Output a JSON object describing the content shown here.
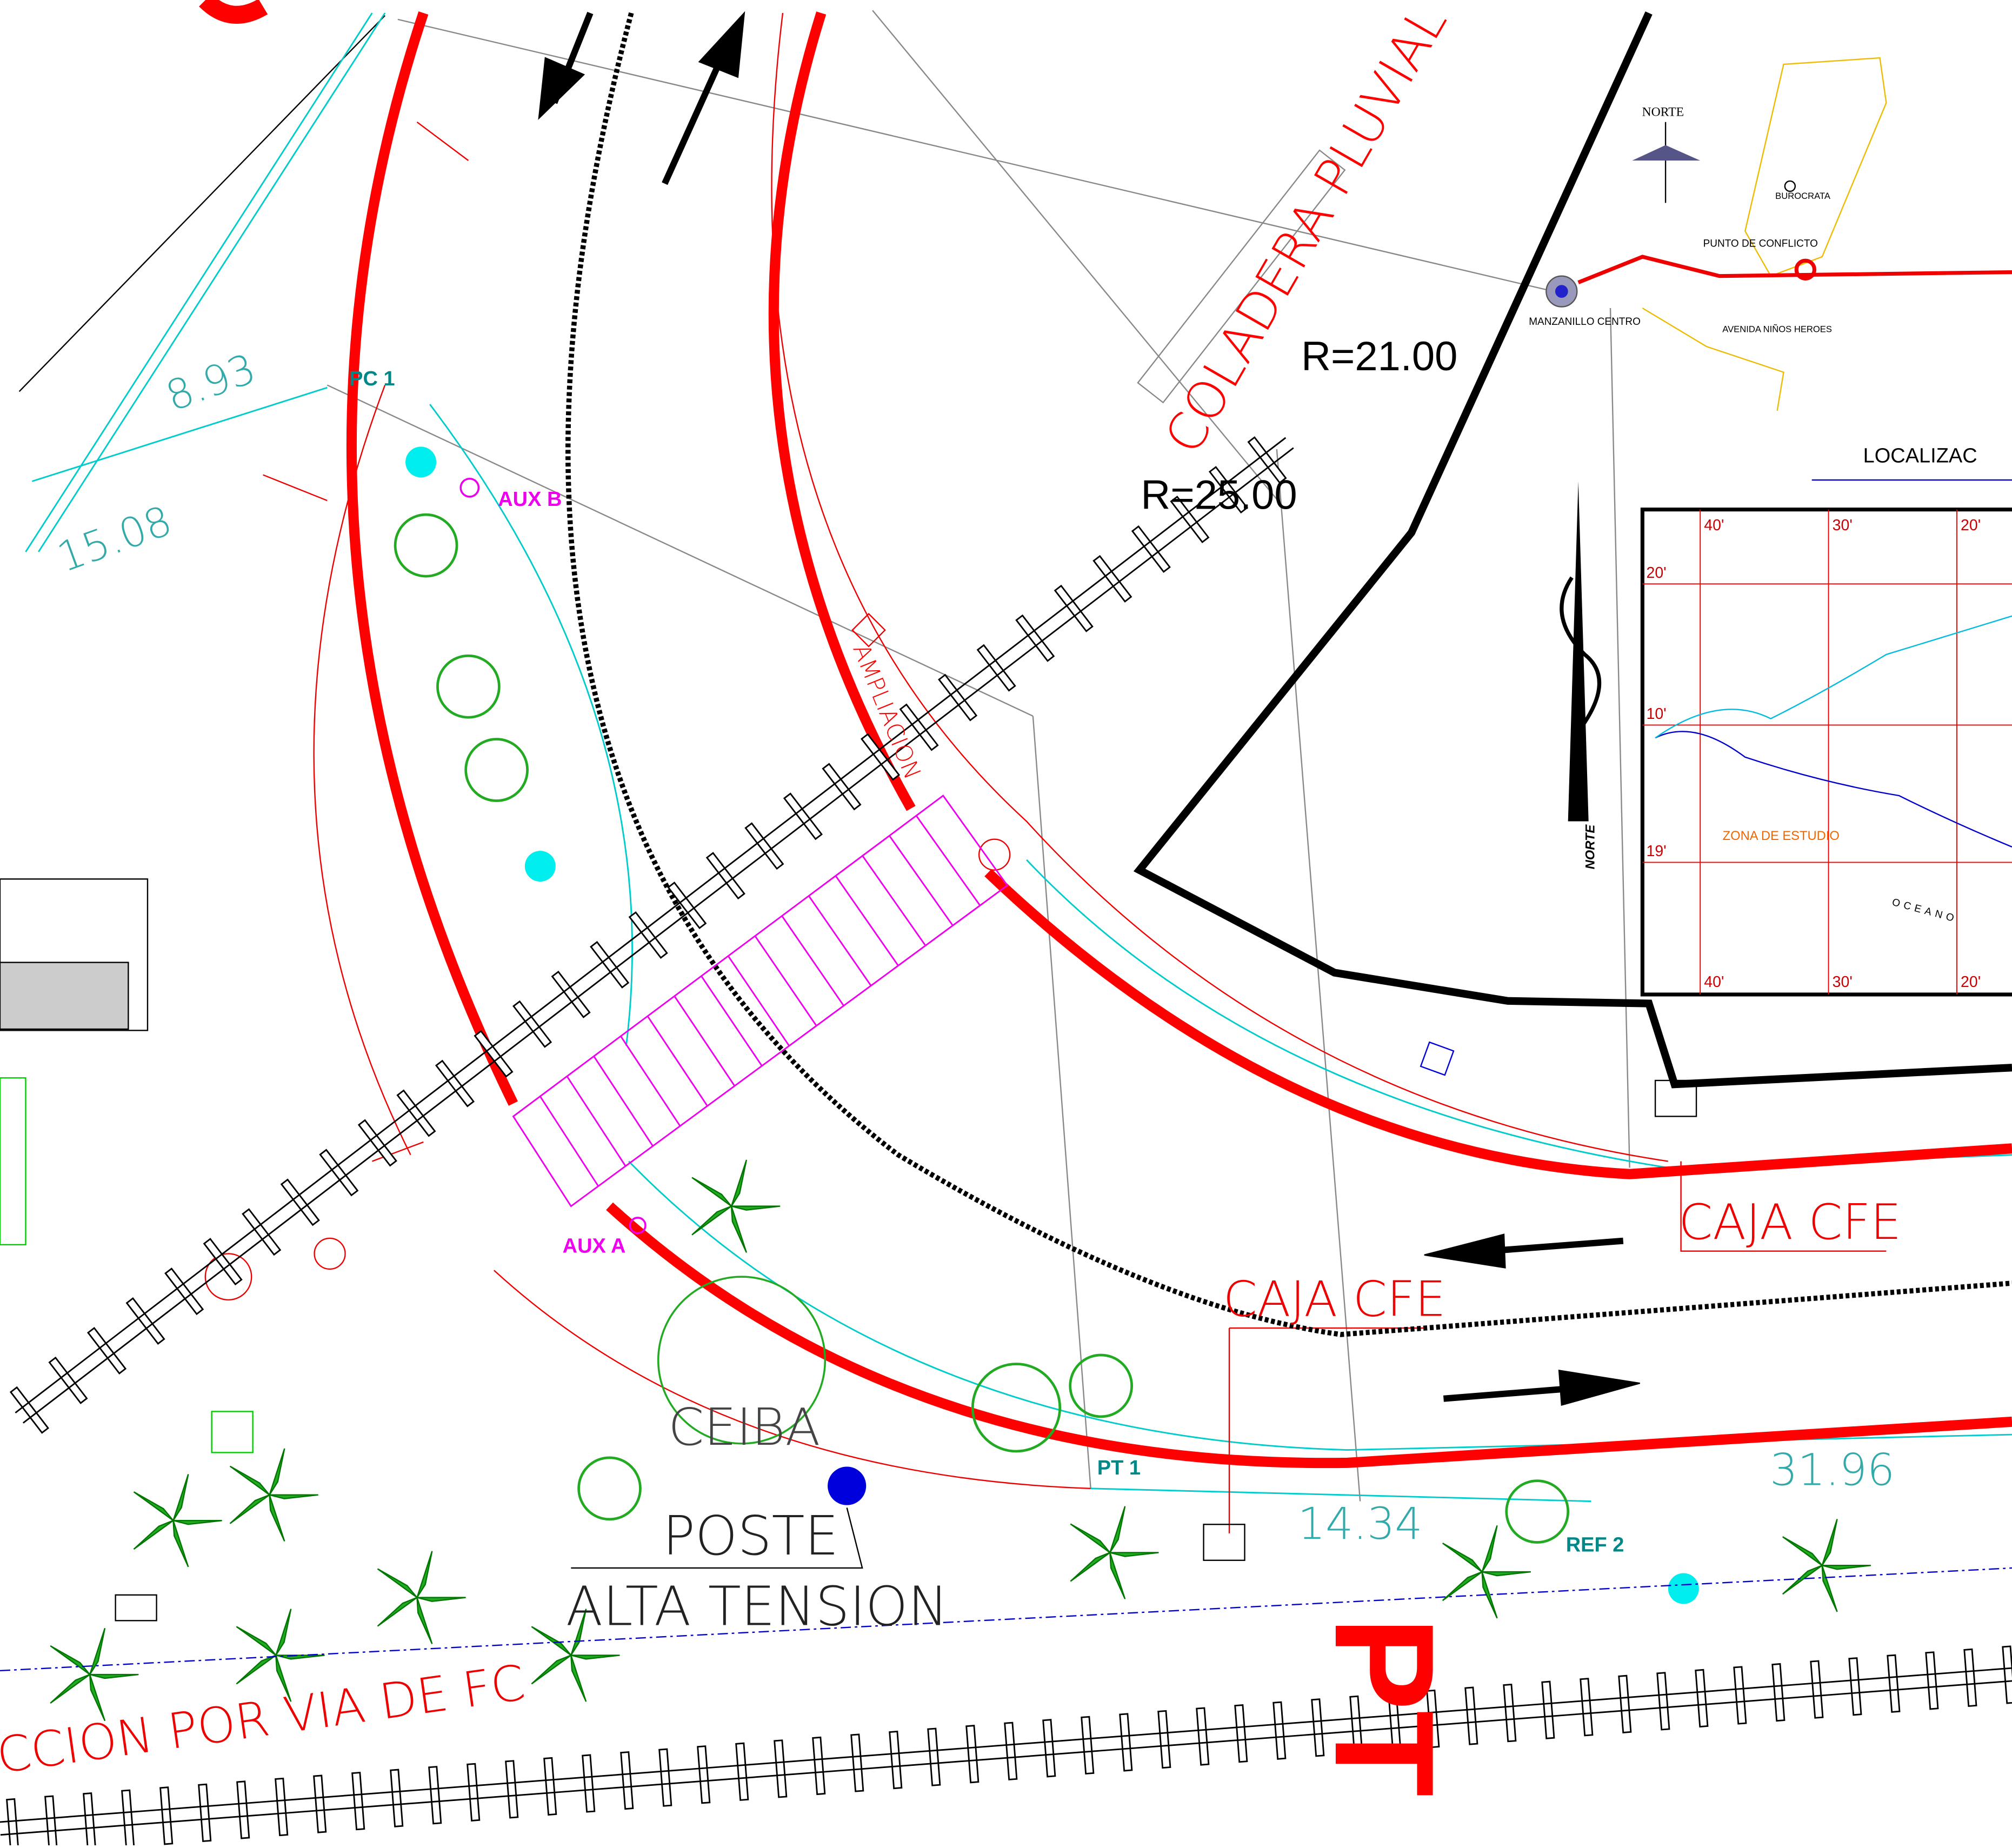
{
  "plan": {
    "coladera": "COLADERA PLUVIAL",
    "r21": "R=21.00",
    "r25": "R=25.00",
    "ampliacion": "AMPLIACION",
    "pc1": "PC 1",
    "aux_b": "AUX B",
    "aux_a": "AUX A",
    "pt1": "PT 1",
    "ref2": "REF 2",
    "caja_cfe_1": "CAJA CFE",
    "caja_cfe_2": "CAJA CFE",
    "ceiba": "CEIBA",
    "poste": "POSTE",
    "alta_tension": "ALTA TENSION",
    "dim_1": "8.93",
    "dim_2": "15.08",
    "dim_3": "14.34",
    "dim_4": "31.96",
    "restriccion": "RICCION POR VIA DE FC",
    "pt": "PT",
    "north_arrow": "NORTE"
  },
  "location_map": {
    "north": "NORTE",
    "burocrata": "BUROCRATA",
    "punto_conflicto": "PUNTO DE CONFLICTO",
    "manzanillo": "MANZANILLO CENTRO",
    "avenida": "AVENIDA NIÑOS HEROES",
    "title": "LOCALIZAC",
    "zona": "ZONA DE ESTUDIO",
    "oceano": "OCEANO",
    "grid_top": [
      "40'",
      "30'",
      "20'"
    ],
    "grid_left": [
      "20'",
      "10'",
      "19'"
    ],
    "grid_bottom": [
      "40'",
      "30'",
      "20'"
    ]
  }
}
